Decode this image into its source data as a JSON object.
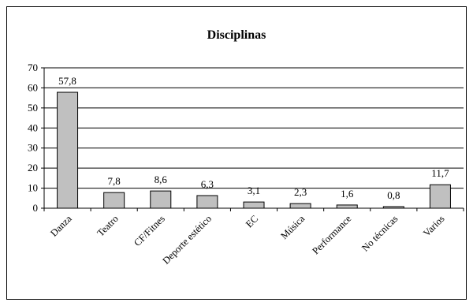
{
  "chart_data": {
    "type": "bar",
    "title": "Disciplinas",
    "categories": [
      "Danza",
      "Teatro",
      "CF/Fitnes",
      "Deporte estético",
      "EC",
      "Música",
      "Performance",
      "No técnicas",
      "Varios"
    ],
    "values": [
      57.8,
      7.8,
      8.6,
      6.3,
      3.1,
      2.3,
      1.6,
      0.8,
      11.7
    ],
    "data_labels": [
      "57,8",
      "7,8",
      "8,6",
      "6,3",
      "3,1",
      "2,3",
      "1,6",
      "0,8",
      "11,7"
    ],
    "xlabel": "",
    "ylabel": "",
    "ylim": [
      0,
      70
    ],
    "yticks": [
      0,
      10,
      20,
      30,
      40,
      50,
      60,
      70
    ],
    "grid": true,
    "bar_color": "#c0c0c0",
    "bar_border": "#000000",
    "gridline_color": "#000000"
  }
}
